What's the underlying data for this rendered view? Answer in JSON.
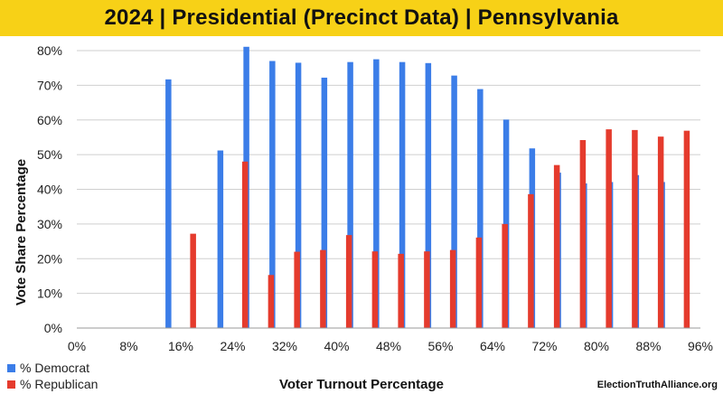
{
  "header": {
    "title": "2024 | Presidential (Precinct Data) | Pennsylvania"
  },
  "credit": "ElectionTruthAlliance.org",
  "colors": {
    "democrat": "#3b7de8",
    "republican": "#e53b2d",
    "banner": "#f7d117"
  },
  "chart_data": {
    "type": "bar",
    "ylabel": "Vote Share Percentage",
    "xlabel": "Voter Turnout Percentage",
    "ylim": [
      0,
      80
    ],
    "yticks": [
      "0%",
      "10%",
      "20%",
      "30%",
      "40%",
      "50%",
      "60%",
      "70%",
      "80%"
    ],
    "xlim": [
      0,
      96
    ],
    "xticks": [
      "0%",
      "8%",
      "16%",
      "24%",
      "32%",
      "40%",
      "48%",
      "56%",
      "64%",
      "72%",
      "80%",
      "88%",
      "96%"
    ],
    "x": [
      16,
      24,
      28,
      32,
      36,
      40,
      44,
      48,
      52,
      56,
      60,
      64,
      68,
      72,
      76,
      80,
      84,
      88,
      92
    ],
    "series": [
      {
        "name": "% Democrat",
        "color": "#3b7de8",
        "values": [
          71.7,
          51.2,
          81.1,
          77.0,
          76.5,
          72.2,
          76.7,
          77.5,
          76.7,
          76.4,
          72.8,
          68.9,
          60.1,
          51.8,
          44.8,
          41.7,
          42.1,
          44.1,
          42.1
        ]
      },
      {
        "name": "% Republican",
        "color": "#e53b2d",
        "values": [
          27.2,
          48.0,
          15.3,
          22.0,
          22.5,
          26.8,
          22.1,
          21.4,
          22.1,
          22.5,
          26.1,
          30.0,
          38.6,
          47.0,
          54.2,
          57.3,
          57.1,
          55.2,
          56.9
        ]
      }
    ]
  }
}
